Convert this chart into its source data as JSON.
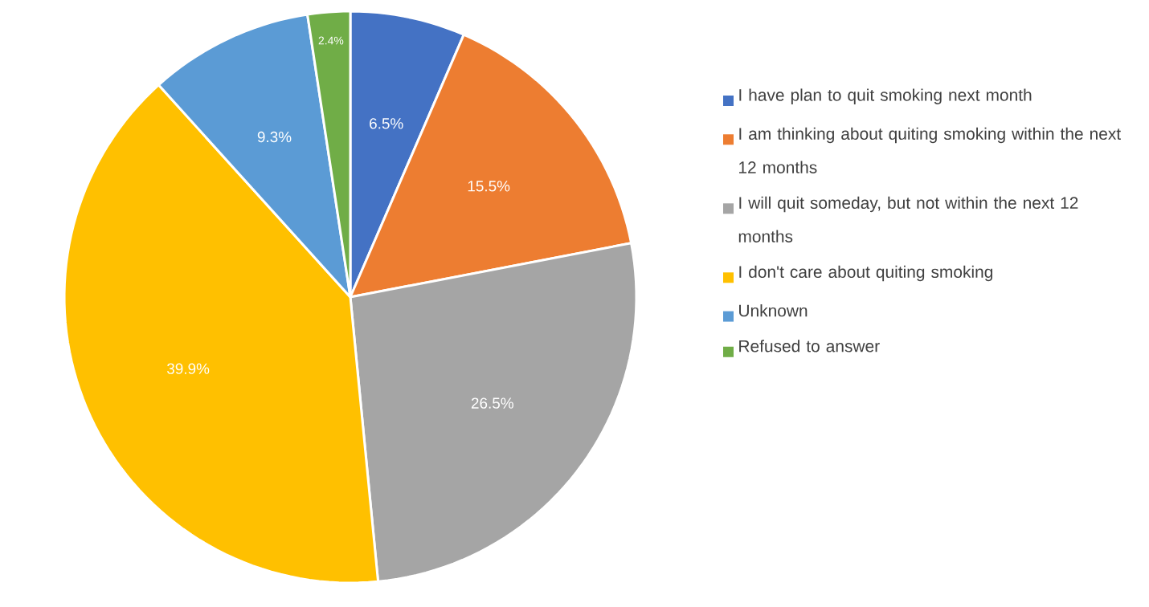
{
  "chart_data": {
    "type": "pie",
    "categories": [
      "I have plan to quit smoking next month",
      "I am thinking about quiting smoking within the next 12 months",
      "I will quit someday, but not within the next 12 months",
      "I don't care about quiting smoking",
      "Unknown",
      "Refused to answer"
    ],
    "values": [
      6.5,
      15.5,
      26.5,
      39.9,
      9.3,
      2.4
    ],
    "value_labels": [
      "6.5%",
      "15.5%",
      "26.5%",
      "39.9%",
      "9.3%",
      "2.4%"
    ],
    "colors": [
      "#4472c4",
      "#ed7d31",
      "#a5a5a5",
      "#ffc000",
      "#5b9bd5",
      "#70ad47"
    ],
    "legend": "right"
  }
}
